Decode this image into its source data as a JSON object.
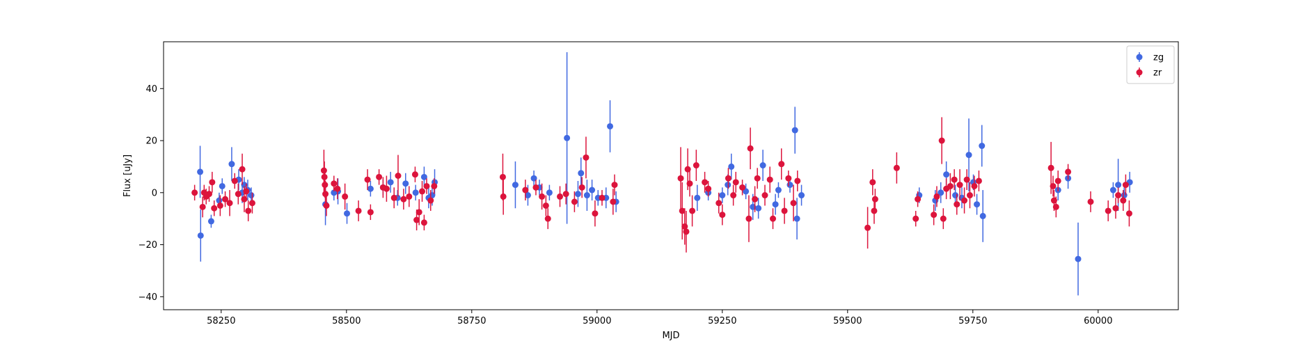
{
  "chart_data": {
    "type": "scatter",
    "title": "",
    "xlabel": "MJD",
    "ylabel": "Flux [uJy]",
    "xlim": [
      58135,
      60160
    ],
    "ylim": [
      -45,
      58
    ],
    "x_ticks": [
      58250,
      58500,
      58750,
      59000,
      59250,
      59500,
      59750,
      60000
    ],
    "y_ticks": [
      -40,
      -20,
      0,
      20,
      40
    ],
    "grid": false,
    "legend_position": "top-right",
    "error_bars": true,
    "series": [
      {
        "name": "zg",
        "color": "#4169e1",
        "points": [
          [
            58208,
            8,
            10
          ],
          [
            58209,
            -16.5,
            10
          ],
          [
            58230,
            -11,
            2.5
          ],
          [
            58246,
            -3,
            3
          ],
          [
            58252,
            2.5,
            3
          ],
          [
            58271,
            11,
            6.5
          ],
          [
            58285,
            5,
            4
          ],
          [
            58292,
            0,
            4
          ],
          [
            58296,
            3,
            3
          ],
          [
            58303,
            1,
            4
          ],
          [
            58310,
            -1,
            3
          ],
          [
            58458,
            -4.5,
            8
          ],
          [
            58475,
            0,
            3
          ],
          [
            58483,
            0.5,
            5
          ],
          [
            58501,
            -8,
            4
          ],
          [
            58548,
            1.5,
            3
          ],
          [
            58573,
            2,
            3
          ],
          [
            58588,
            4,
            4
          ],
          [
            58602,
            -2,
            3
          ],
          [
            58618,
            3.5,
            4
          ],
          [
            58638,
            0,
            3
          ],
          [
            58655,
            6,
            4
          ],
          [
            58664,
            -2,
            4
          ],
          [
            58671,
            -1,
            4
          ],
          [
            58676,
            4,
            5
          ],
          [
            58837,
            3,
            9
          ],
          [
            58862,
            -1,
            4
          ],
          [
            58874,
            5.5,
            3
          ],
          [
            58885,
            2,
            3
          ],
          [
            58905,
            0,
            3
          ],
          [
            58940,
            21,
            33
          ],
          [
            58962,
            -0.5,
            5
          ],
          [
            58968,
            7.5,
            6
          ],
          [
            58980,
            -1,
            6
          ],
          [
            58990,
            1,
            4
          ],
          [
            59002,
            -2,
            3
          ],
          [
            59018,
            -2,
            4
          ],
          [
            59026,
            25.5,
            10
          ],
          [
            59038,
            -3.5,
            4
          ],
          [
            59200,
            -2,
            5
          ],
          [
            59222,
            0,
            3
          ],
          [
            59250,
            -1,
            3
          ],
          [
            59261,
            3,
            4
          ],
          [
            59268,
            10,
            5
          ],
          [
            59297,
            0.5,
            3
          ],
          [
            59311,
            -5.5,
            5
          ],
          [
            59322,
            -6,
            4
          ],
          [
            59331,
            10.5,
            6
          ],
          [
            59356,
            -4.5,
            4
          ],
          [
            59362,
            1,
            3
          ],
          [
            59385,
            3,
            3
          ],
          [
            59395,
            24,
            9
          ],
          [
            59399,
            -10,
            8
          ],
          [
            59408,
            -1,
            4
          ],
          [
            59643,
            -1,
            3
          ],
          [
            59675,
            -3,
            4
          ],
          [
            59686,
            0,
            4
          ],
          [
            59697,
            7,
            5
          ],
          [
            59715,
            -1,
            4
          ],
          [
            59728,
            -2,
            4
          ],
          [
            59742,
            14.5,
            14
          ],
          [
            59751,
            4,
            3
          ],
          [
            59758,
            -4.5,
            4
          ],
          [
            59768,
            18,
            8
          ],
          [
            59770,
            -9,
            10
          ],
          [
            59920,
            1,
            4
          ],
          [
            59940,
            5.5,
            4
          ],
          [
            59960,
            -25.5,
            14
          ],
          [
            60030,
            1,
            3
          ],
          [
            60040,
            3,
            10
          ],
          [
            60052,
            -1,
            3
          ],
          [
            60063,
            4,
            4
          ]
        ]
      },
      {
        "name": "zr",
        "color": "#dc143c",
        "points": [
          [
            58197,
            0,
            3
          ],
          [
            58213,
            -5.5,
            4
          ],
          [
            58216,
            0,
            3
          ],
          [
            58220,
            -1.5,
            3
          ],
          [
            58226,
            -0.5,
            3
          ],
          [
            58232,
            4,
            4
          ],
          [
            58236,
            -6,
            3
          ],
          [
            58248,
            -5,
            4
          ],
          [
            58258,
            -2.5,
            3
          ],
          [
            58267,
            -4,
            5
          ],
          [
            58277,
            4.5,
            3
          ],
          [
            58284,
            -0.5,
            4
          ],
          [
            58292,
            9,
            6
          ],
          [
            58296,
            -2.5,
            5
          ],
          [
            58300,
            0.5,
            3
          ],
          [
            58304,
            -7,
            4
          ],
          [
            58312,
            -4,
            4
          ],
          [
            58455,
            8.5,
            8
          ],
          [
            58456,
            6,
            6
          ],
          [
            58457,
            3,
            5
          ],
          [
            58458,
            -0.5,
            5
          ],
          [
            58460,
            -5,
            4
          ],
          [
            58475,
            3.5,
            3
          ],
          [
            58482,
            1.5,
            4
          ],
          [
            58497,
            -1.5,
            5
          ],
          [
            58524,
            -7,
            4
          ],
          [
            58542,
            5,
            4
          ],
          [
            58548,
            -7.5,
            3
          ],
          [
            58565,
            6,
            3
          ],
          [
            58573,
            2,
            4
          ],
          [
            58580,
            1.5,
            5
          ],
          [
            58595,
            -2,
            4
          ],
          [
            58603,
            6.5,
            8
          ],
          [
            58614,
            -2.5,
            4
          ],
          [
            58625,
            -1.5,
            4
          ],
          [
            58637,
            7,
            3
          ],
          [
            58640,
            -10.5,
            4
          ],
          [
            58645,
            -7.5,
            5
          ],
          [
            58651,
            0.5,
            4
          ],
          [
            58655,
            -11.5,
            3
          ],
          [
            58660,
            2.5,
            3
          ],
          [
            58668,
            -3,
            4
          ],
          [
            58675,
            2.5,
            3
          ],
          [
            58812,
            6,
            9
          ],
          [
            58813,
            -1.5,
            7
          ],
          [
            58857,
            1,
            4
          ],
          [
            58878,
            2,
            3
          ],
          [
            58890,
            -1.5,
            5
          ],
          [
            58898,
            -5,
            4
          ],
          [
            58902,
            -10,
            4
          ],
          [
            58926,
            -1.5,
            4
          ],
          [
            58938,
            -0.5,
            4
          ],
          [
            58955,
            -3.5,
            4
          ],
          [
            58970,
            2,
            4
          ],
          [
            58978,
            13.5,
            8
          ],
          [
            58996,
            -8,
            5
          ],
          [
            59010,
            -2,
            3
          ],
          [
            59032,
            -3.5,
            5
          ],
          [
            59035,
            3,
            4
          ],
          [
            59167,
            5.5,
            12
          ],
          [
            59170,
            -7,
            11
          ],
          [
            59175,
            -13,
            7
          ],
          [
            59178,
            -15,
            8
          ],
          [
            59181,
            9,
            8
          ],
          [
            59185,
            3.5,
            5
          ],
          [
            59190,
            -7,
            6
          ],
          [
            59198,
            10.5,
            6
          ],
          [
            59215,
            4,
            4
          ],
          [
            59222,
            1.5,
            3
          ],
          [
            59243,
            -4,
            4
          ],
          [
            59250,
            -8.5,
            4
          ],
          [
            59262,
            5.5,
            4
          ],
          [
            59272,
            -1,
            4
          ],
          [
            59277,
            4,
            4
          ],
          [
            59290,
            2,
            3
          ],
          [
            59303,
            -10,
            9
          ],
          [
            59306,
            17,
            8
          ],
          [
            59315,
            -2.5,
            5
          ],
          [
            59320,
            5.5,
            4
          ],
          [
            59335,
            -1,
            4
          ],
          [
            59345,
            5,
            5
          ],
          [
            59351,
            -10,
            4
          ],
          [
            59368,
            11,
            6
          ],
          [
            59374,
            -7,
            5
          ],
          [
            59382,
            5.5,
            3
          ],
          [
            59392,
            -4,
            7
          ],
          [
            59400,
            4.5,
            4
          ],
          [
            59540,
            -13.5,
            8
          ],
          [
            59550,
            4,
            5
          ],
          [
            59553,
            -7,
            5
          ],
          [
            59555,
            -2.5,
            4
          ],
          [
            59598,
            9.5,
            6
          ],
          [
            59636,
            -10,
            3
          ],
          [
            59640,
            -2.5,
            3
          ],
          [
            59672,
            -8.5,
            4
          ],
          [
            59678,
            -1.5,
            4
          ],
          [
            59688,
            20,
            9
          ],
          [
            59691,
            -10,
            4
          ],
          [
            59697,
            1.5,
            4
          ],
          [
            59705,
            2.5,
            5
          ],
          [
            59713,
            5,
            4
          ],
          [
            59718,
            -4.5,
            4
          ],
          [
            59724,
            3,
            6
          ],
          [
            59733,
            -3,
            5
          ],
          [
            59738,
            5,
            4
          ],
          [
            59744,
            -1,
            5
          ],
          [
            59753,
            2.5,
            4
          ],
          [
            59762,
            4.5,
            4
          ],
          [
            59906,
            9.5,
            10
          ],
          [
            59910,
            2.5,
            4
          ],
          [
            59912,
            -3,
            4
          ],
          [
            59916,
            -5.5,
            4
          ],
          [
            59920,
            4.5,
            4
          ],
          [
            59940,
            8,
            3
          ],
          [
            59985,
            -3.5,
            4
          ],
          [
            60020,
            -7,
            4
          ],
          [
            60035,
            -6,
            4
          ],
          [
            60040,
            -1,
            3
          ],
          [
            60050,
            -3,
            4
          ],
          [
            60055,
            3,
            4
          ],
          [
            60062,
            -8,
            5
          ]
        ]
      }
    ]
  }
}
